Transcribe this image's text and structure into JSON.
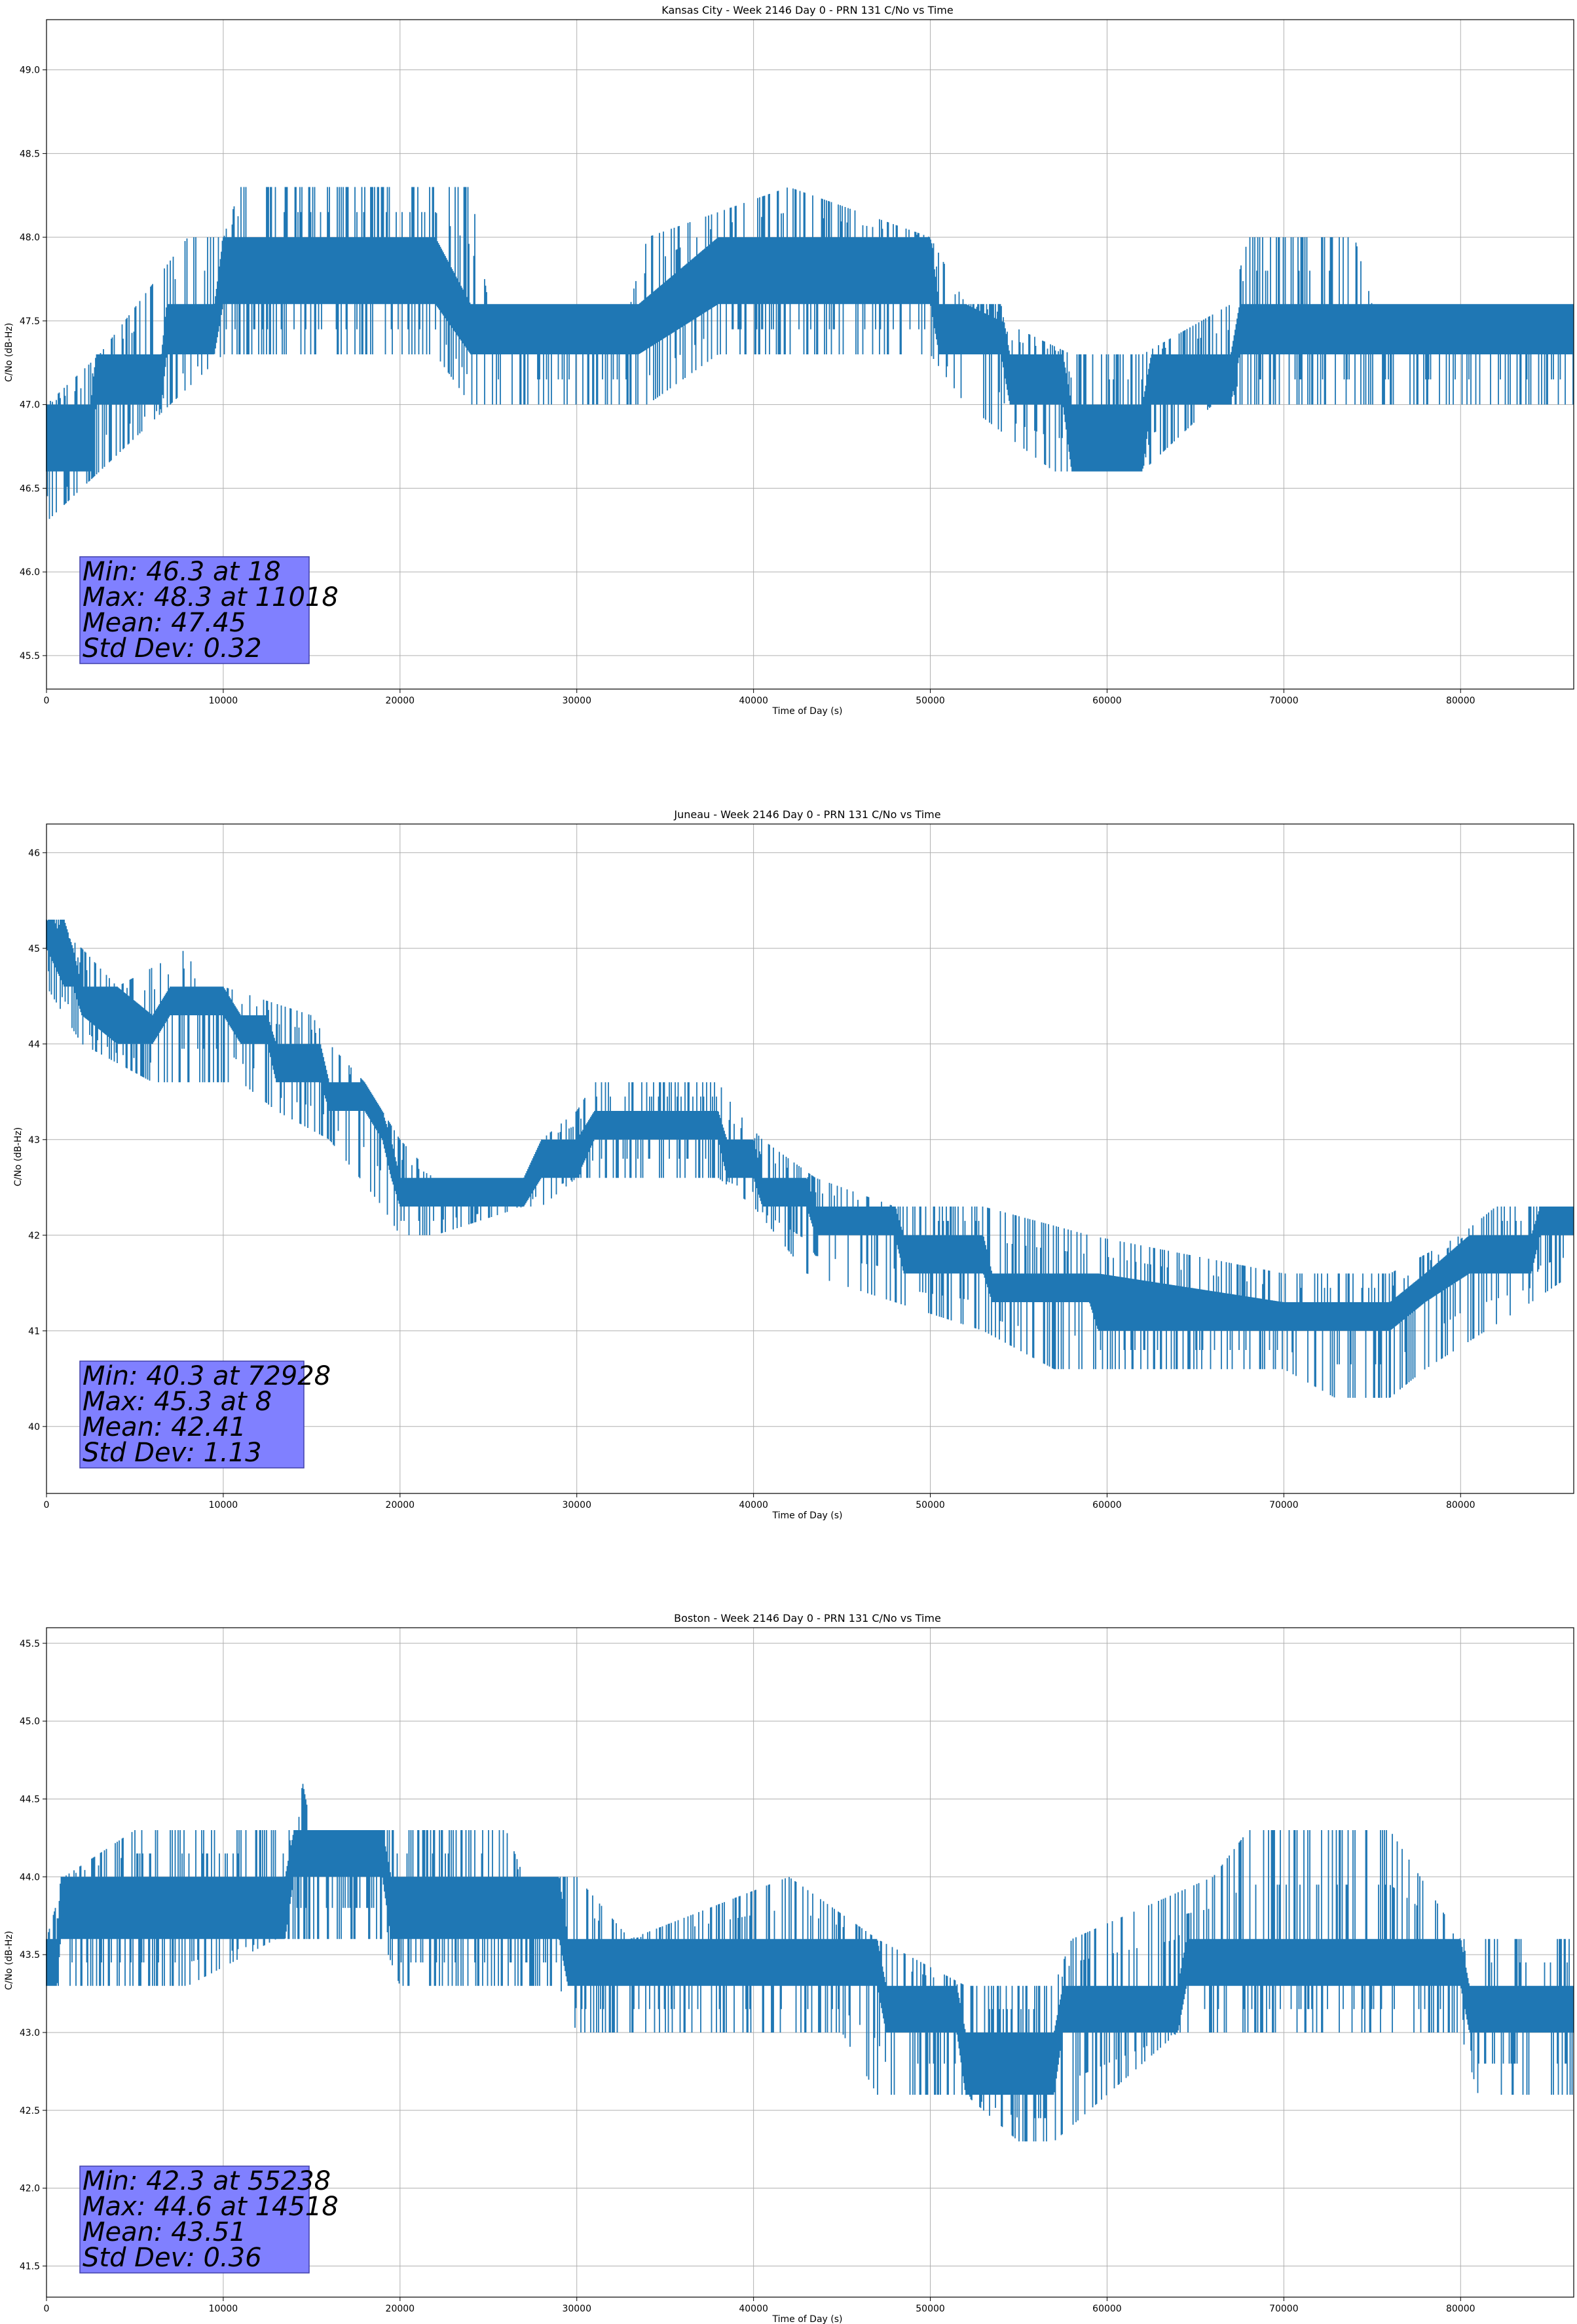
{
  "figure": {
    "title": "",
    "line_color": "#1f77b4",
    "stats_box_color": "#8080ff"
  },
  "chart_data": [
    {
      "type": "line",
      "title": "Kansas City - Week 2146 Day 0 - PRN 131 C/No vs Time",
      "xlabel": "Time of Day (s)",
      "ylabel": "C/No (dB-Hz)",
      "xlim": [
        0,
        86400
      ],
      "ylim": [
        45.3,
        49.3
      ],
      "xticks": [
        0,
        10000,
        20000,
        30000,
        40000,
        50000,
        60000,
        70000,
        80000
      ],
      "yticks": [
        45.5,
        46.0,
        46.5,
        47.0,
        47.5,
        48.0,
        48.5,
        49.0
      ],
      "ytick_labels": [
        "45.5",
        "46.0",
        "46.5",
        "47.0",
        "47.5",
        "48.0",
        "48.5",
        "49.0"
      ],
      "grid": true,
      "series": [
        {
          "band": [
            [
              0,
              46.6,
              47.0
            ],
            [
              2500,
              46.6,
              47.0
            ],
            [
              2800,
              47.0,
              47.3
            ],
            [
              6500,
              47.0,
              47.3
            ],
            [
              6800,
              47.3,
              47.6
            ],
            [
              9500,
              47.3,
              47.6
            ],
            [
              10000,
              47.6,
              48.0
            ],
            [
              22000,
              47.6,
              48.0
            ],
            [
              24000,
              47.3,
              47.6
            ],
            [
              33000,
              47.3,
              47.6
            ],
            [
              33500,
              47.3,
              47.6
            ],
            [
              38000,
              47.6,
              48.0
            ],
            [
              50000,
              47.6,
              48.0
            ],
            [
              50500,
              47.3,
              47.6
            ],
            [
              54000,
              47.3,
              47.6
            ],
            [
              54500,
              47.0,
              47.3
            ],
            [
              57500,
              47.0,
              47.3
            ],
            [
              58000,
              46.6,
              47.0
            ],
            [
              62000,
              46.6,
              47.0
            ],
            [
              62500,
              47.0,
              47.3
            ],
            [
              67000,
              47.0,
              47.3
            ],
            [
              67500,
              47.3,
              47.6
            ],
            [
              86400,
              47.3,
              47.6
            ]
          ],
          "low": [
            [
              0,
              46.3
            ],
            [
              3000,
              46.6
            ],
            [
              7000,
              47.0
            ],
            [
              10000,
              47.3
            ],
            [
              16500,
              47.3
            ],
            [
              22000,
              47.3
            ],
            [
              24000,
              47.0
            ],
            [
              34000,
              47.0
            ],
            [
              38000,
              47.3
            ],
            [
              50000,
              47.3
            ],
            [
              52000,
              47.0
            ],
            [
              57000,
              46.6
            ],
            [
              62000,
              46.6
            ],
            [
              66000,
              47.0
            ],
            [
              86400,
              47.0
            ]
          ],
          "high": [
            [
              0,
              47.0
            ],
            [
              3000,
              47.3
            ],
            [
              8000,
              48.0
            ],
            [
              10000,
              48.0
            ],
            [
              11000,
              48.3
            ],
            [
              24000,
              48.3
            ],
            [
              25000,
              47.6
            ],
            [
              33000,
              47.6
            ],
            [
              34000,
              48.0
            ],
            [
              42000,
              48.3
            ],
            [
              50000,
              48.0
            ],
            [
              52000,
              47.6
            ],
            [
              58000,
              47.3
            ],
            [
              62000,
              47.3
            ],
            [
              67000,
              47.6
            ],
            [
              68000,
              48.0
            ],
            [
              74000,
              48.0
            ],
            [
              75000,
              47.6
            ],
            [
              86400,
              47.6
            ]
          ]
        }
      ],
      "stats": [
        "Min: 46.3 at 18",
        "Max: 48.3 at 11018",
        "Mean: 47.45",
        "Std Dev: 0.32"
      ]
    },
    {
      "type": "line",
      "title": "Juneau - Week 2146 Day 0 - PRN 131 C/No vs Time",
      "xlabel": "Time of Day (s)",
      "ylabel": "C/No (dB-Hz)",
      "xlim": [
        0,
        86400
      ],
      "ylim": [
        39.3,
        46.3
      ],
      "xticks": [
        0,
        10000,
        20000,
        30000,
        40000,
        50000,
        60000,
        70000,
        80000
      ],
      "yticks": [
        40,
        41,
        42,
        43,
        44,
        45,
        46
      ],
      "ytick_labels": [
        "40",
        "41",
        "42",
        "43",
        "44",
        "45",
        "46"
      ],
      "grid": true,
      "series": [
        {
          "band": [
            [
              0,
              45.0,
              45.3
            ],
            [
              1000,
              44.6,
              45.3
            ],
            [
              1500,
              44.6,
              45.0
            ],
            [
              2000,
              44.3,
              44.6
            ],
            [
              4000,
              44.0,
              44.6
            ],
            [
              6000,
              44.0,
              44.3
            ],
            [
              7000,
              44.3,
              44.6
            ],
            [
              10000,
              44.3,
              44.6
            ],
            [
              11000,
              44.0,
              44.3
            ],
            [
              12500,
              44.0,
              44.3
            ],
            [
              13000,
              43.6,
              44.0
            ],
            [
              15500,
              43.6,
              44.0
            ],
            [
              16000,
              43.3,
              43.6
            ],
            [
              18000,
              43.3,
              43.6
            ],
            [
              19000,
              43.0,
              43.3
            ],
            [
              19500,
              42.6,
              43.0
            ],
            [
              20000,
              42.3,
              42.6
            ],
            [
              22000,
              42.3,
              42.6
            ],
            [
              24000,
              42.3,
              42.6
            ],
            [
              27000,
              42.3,
              42.6
            ],
            [
              28000,
              42.6,
              43.0
            ],
            [
              30000,
              42.6,
              43.0
            ],
            [
              31000,
              43.0,
              43.3
            ],
            [
              38000,
              43.0,
              43.3
            ],
            [
              38500,
              42.6,
              43.0
            ],
            [
              40000,
              42.6,
              43.0
            ],
            [
              40500,
              42.3,
              42.6
            ],
            [
              43000,
              42.3,
              42.6
            ],
            [
              43500,
              42.0,
              42.3
            ],
            [
              48000,
              42.0,
              42.3
            ],
            [
              48500,
              41.6,
              42.0
            ],
            [
              53000,
              41.6,
              42.0
            ],
            [
              53500,
              41.3,
              41.6
            ],
            [
              59000,
              41.3,
              41.6
            ],
            [
              59500,
              41.0,
              41.6
            ],
            [
              70000,
              41.0,
              41.3
            ],
            [
              76000,
              41.0,
              41.3
            ],
            [
              78000,
              41.3,
              41.6
            ],
            [
              80500,
              41.6,
              42.0
            ],
            [
              84000,
              41.6,
              42.0
            ],
            [
              84500,
              42.0,
              42.3
            ],
            [
              86400,
              42.0,
              42.3
            ]
          ],
          "low": [
            [
              0,
              44.6
            ],
            [
              1000,
              44.3
            ],
            [
              2000,
              44.0
            ],
            [
              6000,
              43.6
            ],
            [
              10000,
              43.6
            ],
            [
              11000,
              43.6
            ],
            [
              13000,
              43.3
            ],
            [
              16000,
              43.0
            ],
            [
              19000,
              42.3
            ],
            [
              20000,
              42.0
            ],
            [
              22000,
              42.0
            ],
            [
              27000,
              42.3
            ],
            [
              28000,
              42.3
            ],
            [
              30000,
              42.6
            ],
            [
              38000,
              42.6
            ],
            [
              40000,
              42.3
            ],
            [
              43000,
              41.6
            ],
            [
              48000,
              41.3
            ],
            [
              53000,
              41.0
            ],
            [
              57000,
              40.6
            ],
            [
              62000,
              40.6
            ],
            [
              66000,
              40.6
            ],
            [
              70000,
              40.6
            ],
            [
              72900,
              40.3
            ],
            [
              76000,
              40.3
            ],
            [
              78000,
              40.6
            ],
            [
              84000,
              41.3
            ],
            [
              86400,
              41.6
            ]
          ],
          "high": [
            [
              0,
              45.3
            ],
            [
              2000,
              45.0
            ],
            [
              4000,
              44.6
            ],
            [
              8000,
              45.0
            ],
            [
              8500,
              44.6
            ],
            [
              10000,
              44.6
            ],
            [
              15000,
              44.3
            ],
            [
              16000,
              44.0
            ],
            [
              18000,
              43.6
            ],
            [
              20000,
              43.0
            ],
            [
              22000,
              42.6
            ],
            [
              27000,
              42.6
            ],
            [
              28000,
              43.0
            ],
            [
              30000,
              43.3
            ],
            [
              31000,
              43.6
            ],
            [
              38000,
              43.6
            ],
            [
              39000,
              43.3
            ],
            [
              40500,
              43.0
            ],
            [
              43500,
              42.6
            ],
            [
              48000,
              42.3
            ],
            [
              53000,
              42.3
            ],
            [
              59000,
              42.0
            ],
            [
              70000,
              41.6
            ],
            [
              76000,
              41.6
            ],
            [
              80000,
              42.0
            ],
            [
              82000,
              42.3
            ],
            [
              86400,
              42.3
            ]
          ]
        }
      ],
      "stats": [
        "Min: 40.3 at 72928",
        "Max: 45.3 at 8",
        "Mean: 42.41",
        "Std Dev: 1.13"
      ]
    },
    {
      "type": "line",
      "title": "Boston - Week 2146 Day 0 - PRN 131 C/No vs Time",
      "xlabel": "Time of Day (s)",
      "ylabel": "C/No (dB-Hz)",
      "xlim": [
        0,
        86400
      ],
      "ylim": [
        41.3,
        45.6
      ],
      "xticks": [
        0,
        10000,
        20000,
        30000,
        40000,
        50000,
        60000,
        70000,
        80000
      ],
      "yticks": [
        41.5,
        42.0,
        42.5,
        43.0,
        43.5,
        44.0,
        44.5,
        45.0,
        45.5
      ],
      "ytick_labels": [
        "41.5",
        "42.0",
        "42.5",
        "43.0",
        "43.5",
        "44.0",
        "44.5",
        "45.0",
        "45.5"
      ],
      "grid": true,
      "series": [
        {
          "band": [
            [
              0,
              43.3,
              43.6
            ],
            [
              600,
              43.3,
              43.6
            ],
            [
              800,
              43.6,
              44.0
            ],
            [
              13500,
              43.6,
              44.0
            ],
            [
              14000,
              44.0,
              44.3
            ],
            [
              19000,
              44.0,
              44.3
            ],
            [
              19500,
              43.6,
              44.0
            ],
            [
              29000,
              43.6,
              44.0
            ],
            [
              29500,
              43.3,
              43.6
            ],
            [
              47000,
              43.3,
              43.6
            ],
            [
              47500,
              43.0,
              43.3
            ],
            [
              51500,
              43.0,
              43.3
            ],
            [
              52000,
              42.6,
              43.0
            ],
            [
              57000,
              42.6,
              43.0
            ],
            [
              57500,
              43.0,
              43.3
            ],
            [
              64000,
              43.0,
              43.3
            ],
            [
              64500,
              43.3,
              43.6
            ],
            [
              80000,
              43.3,
              43.6
            ],
            [
              80500,
              43.0,
              43.3
            ],
            [
              86400,
              43.0,
              43.3
            ]
          ],
          "low": [
            [
              0,
              43.3
            ],
            [
              1000,
              43.3
            ],
            [
              8000,
              43.3
            ],
            [
              13000,
              43.6
            ],
            [
              14000,
              43.6
            ],
            [
              19000,
              43.6
            ],
            [
              20000,
              43.3
            ],
            [
              29000,
              43.3
            ],
            [
              30000,
              43.0
            ],
            [
              36000,
              43.0
            ],
            [
              40000,
              43.0
            ],
            [
              45000,
              43.0
            ],
            [
              47000,
              42.6
            ],
            [
              52000,
              42.6
            ],
            [
              55000,
              42.3
            ],
            [
              57000,
              42.3
            ],
            [
              60000,
              42.6
            ],
            [
              64000,
              43.0
            ],
            [
              68000,
              43.0
            ],
            [
              72000,
              43.0
            ],
            [
              80000,
              43.0
            ],
            [
              81000,
              42.6
            ],
            [
              86400,
              42.6
            ]
          ],
          "high": [
            [
              0,
              43.6
            ],
            [
              1000,
              44.0
            ],
            [
              5000,
              44.3
            ],
            [
              13000,
              44.3
            ],
            [
              14000,
              44.3
            ],
            [
              14500,
              44.6
            ],
            [
              15000,
              44.3
            ],
            [
              26000,
              44.3
            ],
            [
              27000,
              44.0
            ],
            [
              30000,
              44.0
            ],
            [
              33000,
              43.6
            ],
            [
              42000,
              44.0
            ],
            [
              47000,
              43.6
            ],
            [
              52000,
              43.3
            ],
            [
              57000,
              43.3
            ],
            [
              58000,
              43.6
            ],
            [
              66000,
              44.0
            ],
            [
              68000,
              44.3
            ],
            [
              76000,
              44.3
            ],
            [
              80000,
              43.6
            ],
            [
              86400,
              43.6
            ]
          ]
        }
      ],
      "stats": [
        "Min: 42.3 at 55238",
        "Max: 44.6 at 14518",
        "Mean: 43.51",
        "Std Dev: 0.36"
      ]
    }
  ]
}
